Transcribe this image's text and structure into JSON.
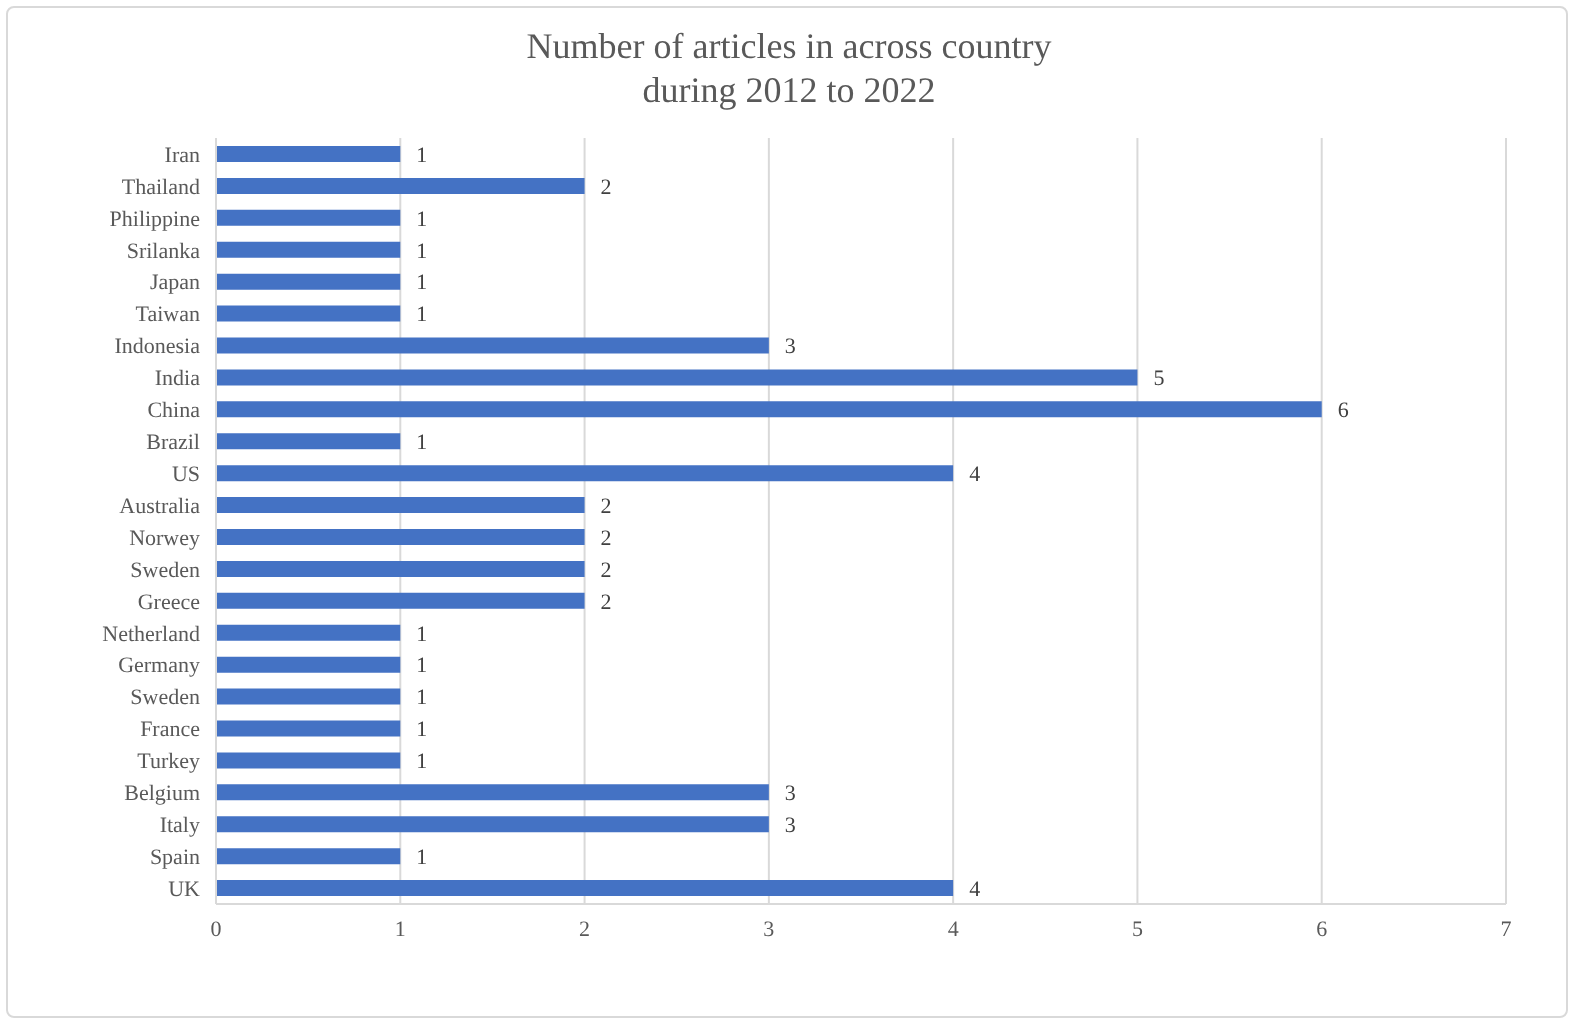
{
  "chart_data": {
    "type": "bar",
    "orientation": "horizontal",
    "title": "Number of articles in across country\nduring 2012 to 2022",
    "categories": [
      "Iran",
      "Thailand",
      "Philippine",
      "Srilanka",
      "Japan",
      "Taiwan",
      "Indonesia",
      "India",
      "China",
      "Brazil",
      "US",
      "Australia",
      "Norwey",
      "Sweden",
      "Greece",
      "Netherland",
      "Germany",
      "Sweden",
      "France",
      "Turkey",
      "Belgium",
      "Italy",
      "Spain",
      "UK"
    ],
    "values": [
      1,
      2,
      1,
      1,
      1,
      1,
      3,
      5,
      6,
      1,
      4,
      2,
      2,
      2,
      2,
      1,
      1,
      1,
      1,
      1,
      3,
      3,
      1,
      4
    ],
    "color": "#4472c4",
    "xlim": [
      0,
      7
    ],
    "xticks": [
      0,
      1,
      2,
      3,
      4,
      5,
      6,
      7
    ],
    "grid": "x",
    "data_labels": true,
    "legend": false
  }
}
